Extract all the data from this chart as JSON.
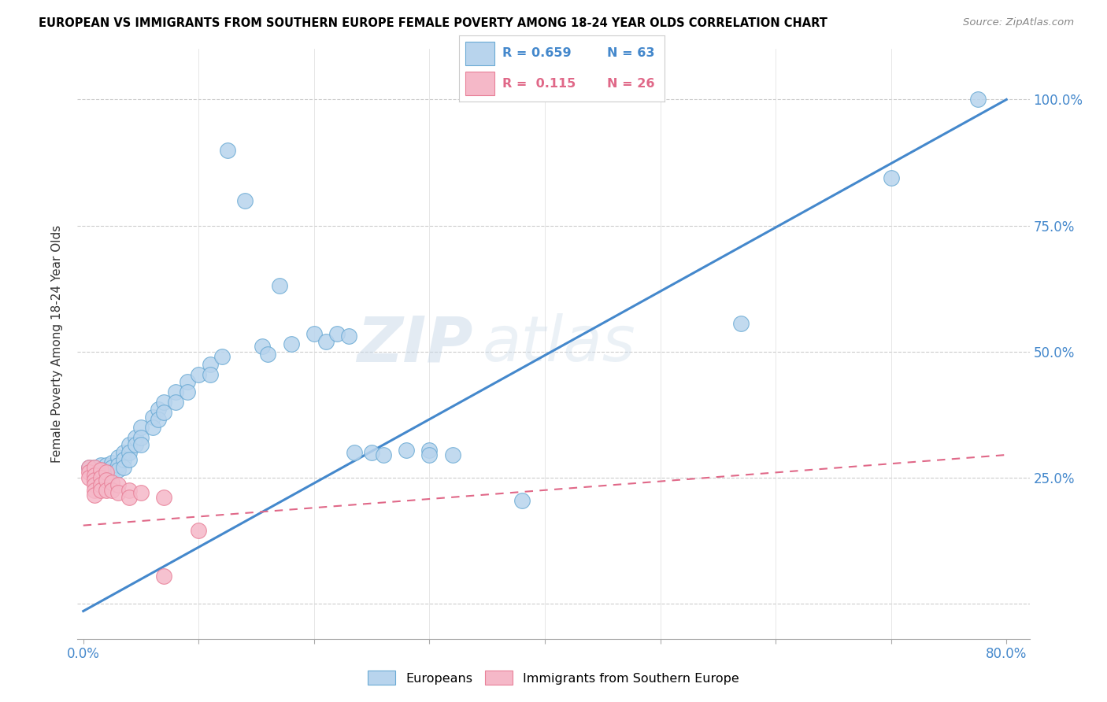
{
  "title": "EUROPEAN VS IMMIGRANTS FROM SOUTHERN EUROPE FEMALE POVERTY AMONG 18-24 YEAR OLDS CORRELATION CHART",
  "source": "Source: ZipAtlas.com",
  "ylabel": "Female Poverty Among 18-24 Year Olds",
  "legend_blue_r": "R = 0.659",
  "legend_blue_n": "N = 63",
  "legend_pink_r": "R =  0.115",
  "legend_pink_n": "N = 26",
  "blue_color": "#b8d4ed",
  "pink_color": "#f5b8c8",
  "blue_edge_color": "#6aaad4",
  "pink_edge_color": "#e88098",
  "blue_line_color": "#4488cc",
  "pink_line_color": "#e06888",
  "watermark_zip": "ZIP",
  "watermark_atlas": "atlas",
  "blue_dots": [
    [
      0.005,
      0.27
    ],
    [
      0.01,
      0.27
    ],
    [
      0.01,
      0.265
    ],
    [
      0.01,
      0.255
    ],
    [
      0.015,
      0.275
    ],
    [
      0.015,
      0.265
    ],
    [
      0.015,
      0.255
    ],
    [
      0.02,
      0.275
    ],
    [
      0.02,
      0.265
    ],
    [
      0.02,
      0.255
    ],
    [
      0.02,
      0.245
    ],
    [
      0.025,
      0.28
    ],
    [
      0.025,
      0.27
    ],
    [
      0.025,
      0.26
    ],
    [
      0.03,
      0.29
    ],
    [
      0.03,
      0.275
    ],
    [
      0.03,
      0.265
    ],
    [
      0.035,
      0.3
    ],
    [
      0.035,
      0.285
    ],
    [
      0.035,
      0.27
    ],
    [
      0.04,
      0.315
    ],
    [
      0.04,
      0.3
    ],
    [
      0.04,
      0.285
    ],
    [
      0.045,
      0.33
    ],
    [
      0.045,
      0.315
    ],
    [
      0.05,
      0.35
    ],
    [
      0.05,
      0.33
    ],
    [
      0.05,
      0.315
    ],
    [
      0.06,
      0.37
    ],
    [
      0.06,
      0.35
    ],
    [
      0.065,
      0.385
    ],
    [
      0.065,
      0.365
    ],
    [
      0.07,
      0.4
    ],
    [
      0.07,
      0.38
    ],
    [
      0.08,
      0.42
    ],
    [
      0.08,
      0.4
    ],
    [
      0.09,
      0.44
    ],
    [
      0.09,
      0.42
    ],
    [
      0.1,
      0.455
    ],
    [
      0.11,
      0.475
    ],
    [
      0.11,
      0.455
    ],
    [
      0.12,
      0.49
    ],
    [
      0.125,
      0.9
    ],
    [
      0.14,
      0.8
    ],
    [
      0.155,
      0.51
    ],
    [
      0.16,
      0.495
    ],
    [
      0.17,
      0.63
    ],
    [
      0.18,
      0.515
    ],
    [
      0.2,
      0.535
    ],
    [
      0.21,
      0.52
    ],
    [
      0.22,
      0.535
    ],
    [
      0.23,
      0.53
    ],
    [
      0.235,
      0.3
    ],
    [
      0.25,
      0.3
    ],
    [
      0.26,
      0.295
    ],
    [
      0.28,
      0.305
    ],
    [
      0.3,
      0.305
    ],
    [
      0.3,
      0.295
    ],
    [
      0.32,
      0.295
    ],
    [
      0.38,
      0.205
    ],
    [
      0.57,
      0.555
    ],
    [
      0.7,
      0.845
    ],
    [
      0.775,
      1.0
    ]
  ],
  "pink_dots": [
    [
      0.005,
      0.27
    ],
    [
      0.005,
      0.26
    ],
    [
      0.005,
      0.25
    ],
    [
      0.01,
      0.27
    ],
    [
      0.01,
      0.255
    ],
    [
      0.01,
      0.245
    ],
    [
      0.01,
      0.235
    ],
    [
      0.01,
      0.225
    ],
    [
      0.01,
      0.215
    ],
    [
      0.015,
      0.265
    ],
    [
      0.015,
      0.25
    ],
    [
      0.015,
      0.235
    ],
    [
      0.015,
      0.225
    ],
    [
      0.02,
      0.26
    ],
    [
      0.02,
      0.245
    ],
    [
      0.02,
      0.225
    ],
    [
      0.025,
      0.24
    ],
    [
      0.025,
      0.225
    ],
    [
      0.03,
      0.235
    ],
    [
      0.03,
      0.22
    ],
    [
      0.04,
      0.225
    ],
    [
      0.04,
      0.21
    ],
    [
      0.05,
      0.22
    ],
    [
      0.07,
      0.21
    ],
    [
      0.1,
      0.145
    ],
    [
      0.07,
      0.055
    ]
  ],
  "blue_line_x": [
    0.0,
    0.8
  ],
  "blue_line_y": [
    -0.015,
    1.0
  ],
  "pink_line_x": [
    0.0,
    0.8
  ],
  "pink_line_y": [
    0.155,
    0.295
  ],
  "xlim": [
    -0.005,
    0.82
  ],
  "ylim": [
    -0.07,
    1.1
  ],
  "xtick_positions": [
    0.0,
    0.1,
    0.2,
    0.3,
    0.4,
    0.5,
    0.6,
    0.7,
    0.8
  ],
  "ytick_positions": [
    0.0,
    0.25,
    0.5,
    0.75,
    1.0
  ],
  "ytick_labels": [
    "",
    "25.0%",
    "50.0%",
    "75.0%",
    "100.0%"
  ]
}
